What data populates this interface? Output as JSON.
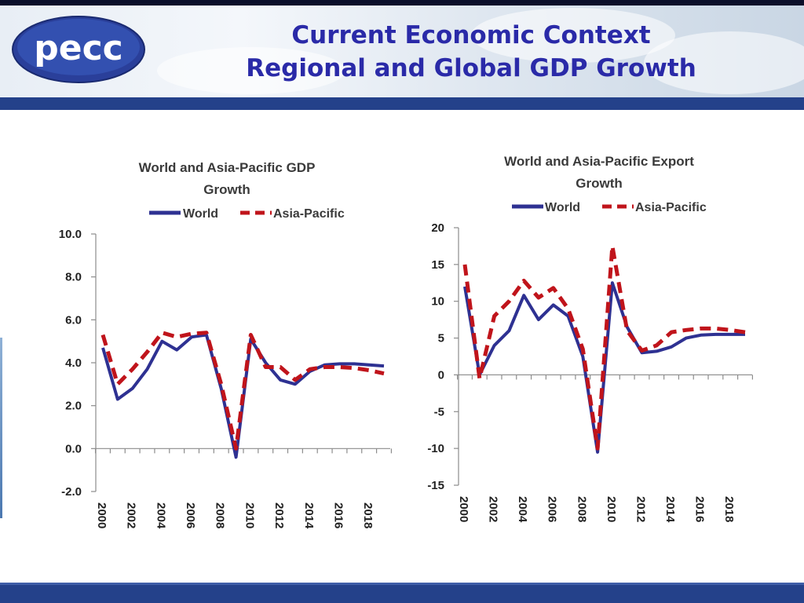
{
  "header": {
    "logo_text": "pecc",
    "title_line1": "Current Economic Context",
    "title_line2": "Regional and Global GDP Growth"
  },
  "colors": {
    "title": "#2a2aa8",
    "band": "#24418a",
    "world_series": "#2e3192",
    "asia_pacific_series": "#c0141b"
  },
  "chart_data": [
    {
      "type": "line",
      "title": [
        "World and Asia-Pacific GDP",
        "Growth"
      ],
      "legend": [
        "World",
        "Asia-Pacific"
      ],
      "x": [
        2000,
        2001,
        2002,
        2003,
        2004,
        2005,
        2006,
        2007,
        2008,
        2009,
        2010,
        2011,
        2012,
        2013,
        2014,
        2015,
        2016,
        2017,
        2018,
        2019
      ],
      "x_tick_labels": [
        "2000",
        "2002",
        "2004",
        "2006",
        "2008",
        "2010",
        "2012",
        "2014",
        "2016",
        "2018"
      ],
      "ylim": [
        -2,
        10
      ],
      "y_ticks": [
        -2,
        0,
        2,
        4,
        6,
        8,
        10
      ],
      "y_tick_labels": [
        "-2.0",
        "0.0",
        "2.0",
        "4.0",
        "6.0",
        "8.0",
        "10.0"
      ],
      "series": [
        {
          "name": "World",
          "style": "solid",
          "values": [
            4.7,
            2.3,
            2.8,
            3.7,
            5.0,
            4.6,
            5.2,
            5.3,
            2.8,
            -0.4,
            5.1,
            4.0,
            3.2,
            3.0,
            3.6,
            3.9,
            3.95,
            3.95,
            3.9,
            3.85
          ]
        },
        {
          "name": "Asia-Pacific",
          "style": "dashed",
          "values": [
            5.3,
            3.0,
            3.7,
            4.5,
            5.4,
            5.2,
            5.35,
            5.4,
            3.0,
            0.0,
            5.3,
            3.8,
            3.8,
            3.2,
            3.7,
            3.8,
            3.8,
            3.75,
            3.65,
            3.5
          ]
        }
      ]
    },
    {
      "type": "line",
      "title": [
        "World and Asia-Pacific Export",
        "Growth"
      ],
      "legend": [
        "World",
        "Asia-Pacific"
      ],
      "x": [
        2000,
        2001,
        2002,
        2003,
        2004,
        2005,
        2006,
        2007,
        2008,
        2009,
        2010,
        2011,
        2012,
        2013,
        2014,
        2015,
        2016,
        2017,
        2018,
        2019
      ],
      "x_tick_labels": [
        "2000",
        "2002",
        "2004",
        "2006",
        "2008",
        "2010",
        "2012",
        "2014",
        "2016",
        "2018"
      ],
      "ylim": [
        -15,
        20
      ],
      "y_ticks": [
        -15,
        -10,
        -5,
        0,
        5,
        10,
        15,
        20
      ],
      "y_tick_labels": [
        "-15",
        "-10",
        "-5",
        "0",
        "5",
        "10",
        "15",
        "20"
      ],
      "series": [
        {
          "name": "World",
          "style": "solid",
          "values": [
            12.0,
            0.0,
            4.0,
            6.0,
            10.8,
            7.5,
            9.5,
            8.0,
            2.5,
            -10.5,
            12.5,
            6.5,
            3.0,
            3.2,
            3.8,
            5.0,
            5.4,
            5.5,
            5.5,
            5.5
          ]
        },
        {
          "name": "Asia-Pacific",
          "style": "dashed",
          "values": [
            15.0,
            -0.5,
            8.0,
            10.0,
            12.8,
            10.5,
            11.8,
            9.0,
            3.5,
            -10.0,
            17.5,
            6.0,
            3.3,
            4.0,
            5.8,
            6.1,
            6.3,
            6.3,
            6.1,
            5.8
          ]
        }
      ]
    }
  ]
}
